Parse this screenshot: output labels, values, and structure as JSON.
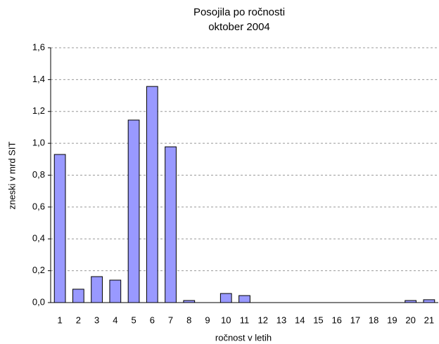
{
  "chart_data": {
    "type": "bar",
    "title": "Posojila po ročnosti",
    "subtitle": "oktober 2004",
    "x_label": "ročnost v letih",
    "y_label": "zneski v mrd SIT",
    "categories": [
      "1",
      "2",
      "3",
      "4",
      "5",
      "6",
      "7",
      "8",
      "9",
      "10",
      "11",
      "12",
      "13",
      "14",
      "15",
      "16",
      "17",
      "18",
      "19",
      "20",
      "21"
    ],
    "values": [
      0.93,
      0.084,
      0.163,
      0.141,
      1.146,
      1.357,
      0.978,
      0.013,
      0,
      0.057,
      0.044,
      0,
      0,
      0,
      0,
      0,
      0,
      0,
      0,
      0.013,
      0.018
    ],
    "color": "#9999ff",
    "ylim": [
      0,
      1.6
    ],
    "yticks": [
      {
        "value": 0,
        "label": "0,0"
      },
      {
        "value": 0.2,
        "label": "0,2"
      },
      {
        "value": 0.4,
        "label": "0,4"
      },
      {
        "value": 0.6,
        "label": "0,6"
      },
      {
        "value": 0.8,
        "label": "0,8"
      },
      {
        "value": 1.0,
        "label": "1,0"
      },
      {
        "value": 1.2,
        "label": "1,2"
      },
      {
        "value": 1.4,
        "label": "1,4"
      },
      {
        "value": 1.6,
        "label": "1,6"
      }
    ],
    "grid": true
  }
}
